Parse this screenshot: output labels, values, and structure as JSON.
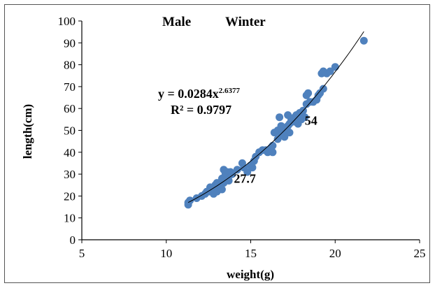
{
  "chart_data": {
    "type": "scatter",
    "title_left": "Male",
    "title_right": "Winter",
    "xlabel": "weight(g)",
    "ylabel": "length(cm)",
    "xlim": [
      5,
      25
    ],
    "ylim": [
      0,
      100
    ],
    "xticks": [
      5,
      10,
      15,
      20,
      25
    ],
    "yticks": [
      0,
      10,
      20,
      30,
      40,
      50,
      60,
      70,
      80,
      90,
      100
    ],
    "grid": false,
    "legend": "none",
    "point_color": "#4f81bd",
    "trendline": {
      "type": "power",
      "a": 0.0284,
      "b": 2.6377,
      "x_range": [
        11.3,
        21.7
      ],
      "equation_prefix": "y = 0.0284x",
      "equation_exponent": "2.6377",
      "r2_text": "R² = 0.9797"
    },
    "annotations": [
      {
        "text": "54",
        "x": 18.2,
        "y": 52.5
      },
      {
        "text": "27.7",
        "x": 14.0,
        "y": 26.0
      }
    ],
    "points": [
      [
        11.3,
        16
      ],
      [
        11.3,
        17
      ],
      [
        11.4,
        18
      ],
      [
        11.8,
        19
      ],
      [
        12.1,
        20
      ],
      [
        12.3,
        21
      ],
      [
        12.5,
        22
      ],
      [
        12.7,
        23
      ],
      [
        12.8,
        21
      ],
      [
        12.9,
        25
      ],
      [
        13.0,
        22
      ],
      [
        13.1,
        24
      ],
      [
        13.2,
        25
      ],
      [
        13.3,
        23
      ],
      [
        13.4,
        26
      ],
      [
        13.5,
        27
      ],
      [
        13.3,
        28
      ],
      [
        13.5,
        30
      ],
      [
        13.6,
        31
      ],
      [
        13.7,
        29
      ],
      [
        13.8,
        31
      ],
      [
        13.4,
        32
      ],
      [
        13.7,
        27
      ],
      [
        14.2,
        32
      ],
      [
        14.5,
        35
      ],
      [
        14.8,
        31
      ],
      [
        15.0,
        34
      ],
      [
        15.2,
        36
      ],
      [
        15.3,
        38
      ],
      [
        15.5,
        40
      ],
      [
        15.7,
        41
      ],
      [
        15.9,
        41
      ],
      [
        16.0,
        40
      ],
      [
        16.2,
        42
      ],
      [
        16.3,
        40
      ],
      [
        16.3,
        43
      ],
      [
        16.4,
        49
      ],
      [
        16.6,
        46
      ],
      [
        16.6,
        50
      ],
      [
        16.8,
        48
      ],
      [
        16.9,
        49
      ],
      [
        17.0,
        50
      ],
      [
        17.1,
        51
      ],
      [
        17.2,
        52
      ],
      [
        17.3,
        49
      ],
      [
        17.3,
        53
      ],
      [
        17.4,
        55
      ],
      [
        17.5,
        54
      ],
      [
        17.6,
        56
      ],
      [
        17.7,
        57
      ],
      [
        17.7,
        55
      ],
      [
        17.8,
        53
      ],
      [
        17.9,
        58
      ],
      [
        18.0,
        57
      ],
      [
        18.1,
        59
      ],
      [
        18.2,
        56
      ],
      [
        18.3,
        62
      ],
      [
        18.3,
        66
      ],
      [
        18.4,
        67
      ],
      [
        18.5,
        63
      ],
      [
        18.7,
        63
      ],
      [
        18.9,
        64
      ],
      [
        19.0,
        66
      ],
      [
        19.1,
        67
      ],
      [
        19.3,
        69
      ],
      [
        19.2,
        76
      ],
      [
        19.3,
        77
      ],
      [
        19.5,
        76
      ],
      [
        19.7,
        77
      ],
      [
        20.0,
        79
      ],
      [
        16.7,
        56
      ],
      [
        17.2,
        57
      ],
      [
        17.6,
        54
      ],
      [
        18.0,
        55
      ],
      [
        17.0,
        47
      ],
      [
        16.8,
        52
      ],
      [
        15.1,
        33
      ],
      [
        14.6,
        33
      ],
      [
        13.9,
        30
      ],
      [
        12.6,
        24
      ],
      [
        12.4,
        22
      ],
      [
        13.0,
        26
      ],
      [
        21.7,
        91
      ]
    ]
  }
}
